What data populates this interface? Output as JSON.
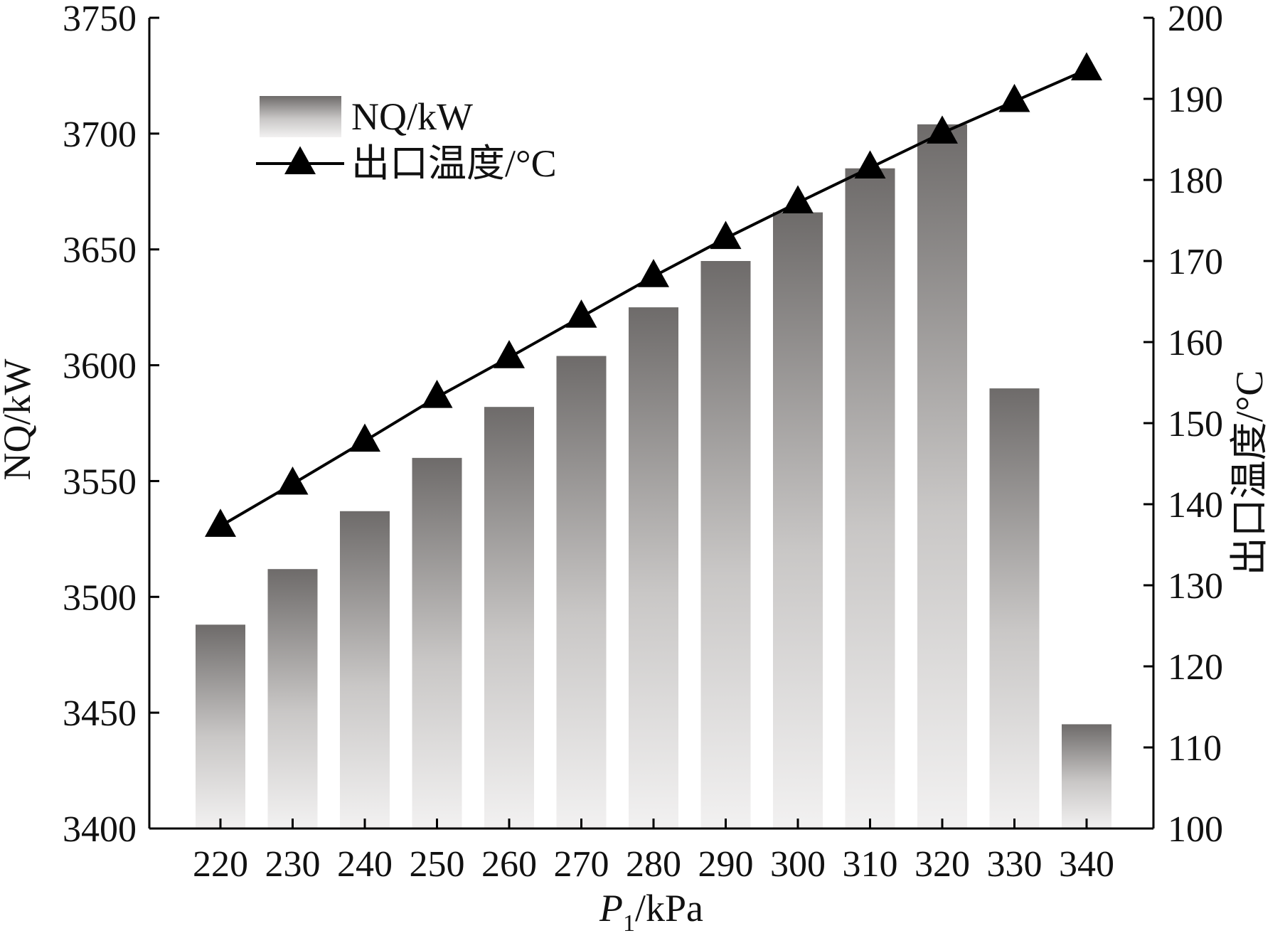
{
  "chart_data": {
    "type": "bar",
    "x_label_main": "P",
    "x_label_sub": "1",
    "x_label_unit": "/kPa",
    "categories": [
      "220",
      "230",
      "240",
      "250",
      "260",
      "270",
      "280",
      "290",
      "300",
      "310",
      "320",
      "330",
      "340"
    ],
    "y_left": {
      "label": "NQ/kW",
      "ylim": [
        3400,
        3750
      ],
      "ticks": [
        3400,
        3450,
        3500,
        3550,
        3600,
        3650,
        3700,
        3750
      ]
    },
    "y_right": {
      "label": "出口温度/°C",
      "ylim": [
        100,
        200
      ],
      "ticks": [
        100,
        110,
        120,
        130,
        140,
        150,
        160,
        170,
        180,
        190,
        200
      ]
    },
    "series": [
      {
        "name": "NQ/kW",
        "type": "bar",
        "axis": "left",
        "values": [
          3488,
          3512,
          3537,
          3560,
          3582,
          3604,
          3625,
          3645,
          3666,
          3685,
          3704,
          3590,
          3445
        ]
      },
      {
        "name": "出口温度/°C",
        "type": "line",
        "marker": "triangle",
        "axis": "right",
        "values": [
          137.3,
          142.5,
          147.8,
          153.2,
          158.1,
          163.1,
          168.1,
          172.8,
          177.2,
          181.5,
          185.8,
          189.7,
          193.6
        ]
      }
    ],
    "legend_position": "top-left",
    "grid": false,
    "colors": {
      "bar_dark": "#6e6b6a",
      "bar_light": "#f2f1f1",
      "line": "#000000",
      "axis": "#000000"
    }
  }
}
